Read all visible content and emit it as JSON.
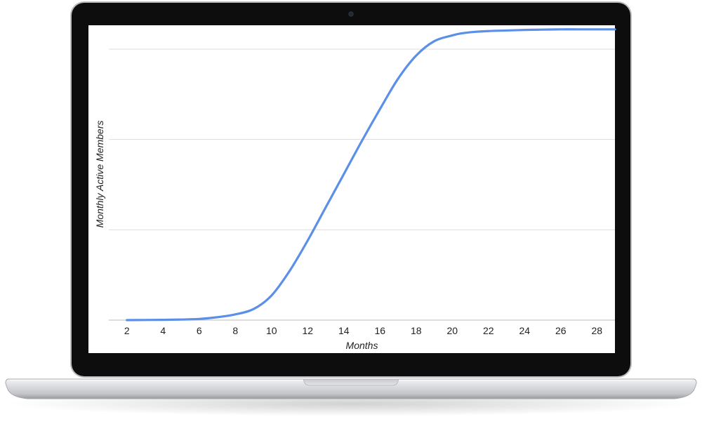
{
  "colors": {
    "series": "#5b8fe8",
    "gridline": "#dddddd",
    "screen": "#ffffff",
    "bezel": "#0d0d0d",
    "body": "#d2d3d6"
  },
  "device": {
    "camera_icon": "webcam-icon"
  },
  "chart_data": {
    "type": "line",
    "title": "",
    "xlabel": "Months",
    "ylabel": "Monthly Active Members",
    "x_ticks": [
      2,
      4,
      6,
      8,
      10,
      12,
      14,
      16,
      18,
      20,
      22,
      24,
      26,
      28
    ],
    "xlim": [
      1,
      29
    ],
    "ylim": [
      0,
      100
    ],
    "y_gridlines": [
      0,
      31.25,
      62.5,
      93.75
    ],
    "y_tick_labels_shown": false,
    "grid": true,
    "legend": "none",
    "series": [
      {
        "x": [
          2,
          3,
          4,
          5,
          6,
          7,
          8,
          9,
          10,
          11,
          12,
          13,
          14,
          15,
          16,
          17,
          18,
          19,
          20,
          20.5,
          21,
          22,
          23,
          24,
          25,
          26,
          27,
          28,
          29
        ],
        "y": [
          0,
          0.05,
          0.1,
          0.2,
          0.4,
          1,
          2,
          3.8,
          8.5,
          17,
          27.5,
          39,
          50.5,
          62,
          73,
          83.5,
          91.5,
          96.5,
          98.5,
          99.2,
          99.6,
          100,
          100.2,
          100.4,
          100.5,
          100.6,
          100.6,
          100.6,
          100.6
        ]
      }
    ]
  }
}
